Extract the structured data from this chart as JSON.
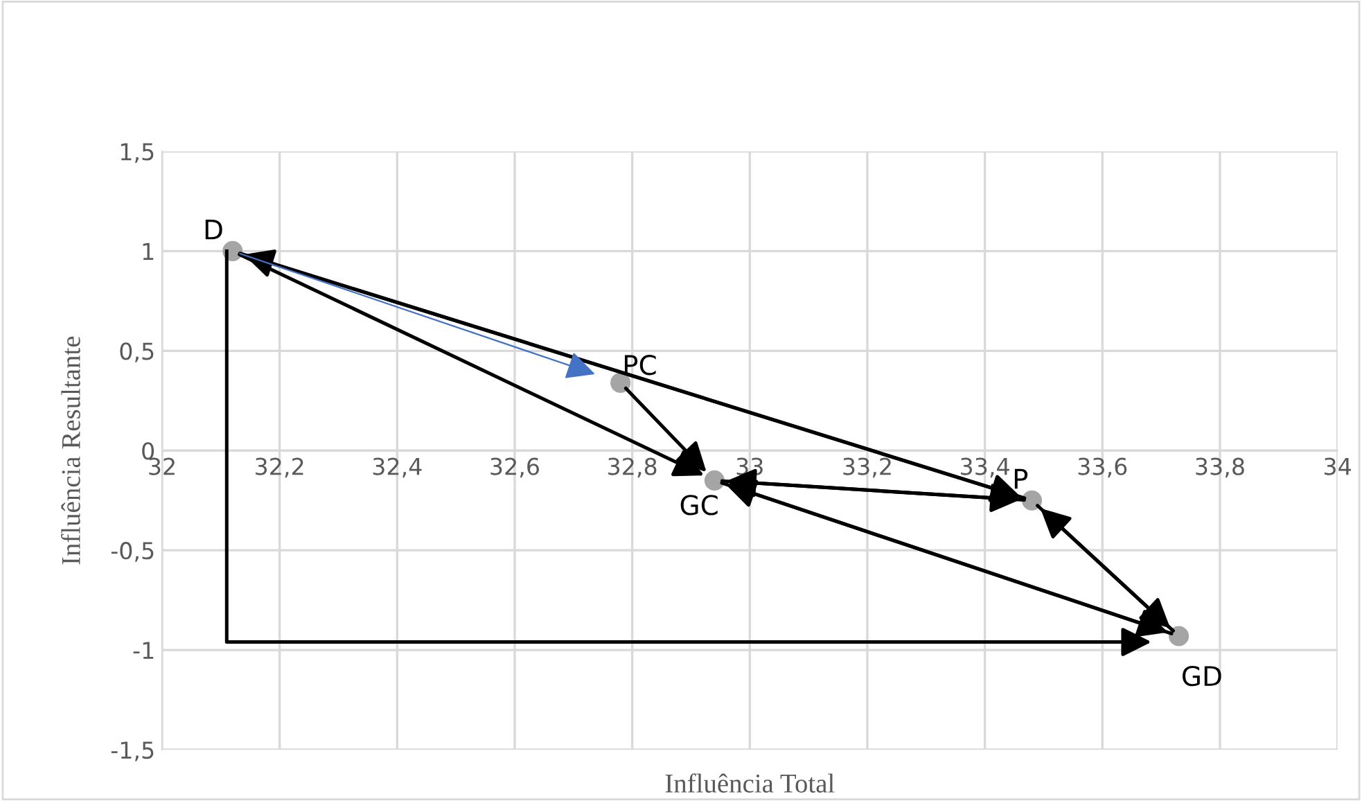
{
  "chart_data": {
    "type": "scatter",
    "xlabel": "Influência Total",
    "ylabel": "Influência Resultante",
    "series": [
      {
        "color": "#a5a5a5",
        "x": [
          32.12,
          32.78,
          32.94,
          33.48,
          33.73
        ],
        "values": [
          1.0,
          0.34,
          -0.15,
          -0.25,
          -0.93
        ]
      }
    ],
    "annotations": [
      {
        "text": "D",
        "x": 32.12,
        "y": 1.0
      },
      {
        "text": "PC",
        "x": 32.78,
        "y": 0.34
      },
      {
        "text": "GC",
        "x": 32.94,
        "y": -0.15
      },
      {
        "text": "P",
        "x": 33.48,
        "y": -0.25
      },
      {
        "text": "GD",
        "x": 33.73,
        "y": -0.93
      }
    ],
    "xlim": [
      32,
      34
    ],
    "xticks": [
      {
        "value": 32,
        "label": "32"
      },
      {
        "value": 32.2,
        "label": "32,2"
      },
      {
        "value": 32.4,
        "label": "32,4"
      },
      {
        "value": 32.6,
        "label": "32,6"
      },
      {
        "value": 32.8,
        "label": "32,8"
      },
      {
        "value": 33,
        "label": "33"
      },
      {
        "value": 33.2,
        "label": "33,2"
      },
      {
        "value": 33.4,
        "label": "33,4"
      },
      {
        "value": 33.6,
        "label": "33,6"
      },
      {
        "value": 33.8,
        "label": "33,8"
      },
      {
        "value": 34,
        "label": "34"
      }
    ],
    "ylim": [
      -1.5,
      1.5
    ],
    "yticks": [
      {
        "value": -1.5,
        "label": "-1,5"
      },
      {
        "value": -1,
        "label": "-1"
      },
      {
        "value": -0.5,
        "label": "-0,5"
      },
      {
        "value": 0,
        "label": "0"
      },
      {
        "value": 0.5,
        "label": "0,5"
      },
      {
        "value": 1,
        "label": "1"
      },
      {
        "value": 1.5,
        "label": "1,5"
      }
    ],
    "grid": true,
    "marker": "circle",
    "legend": false
  }
}
